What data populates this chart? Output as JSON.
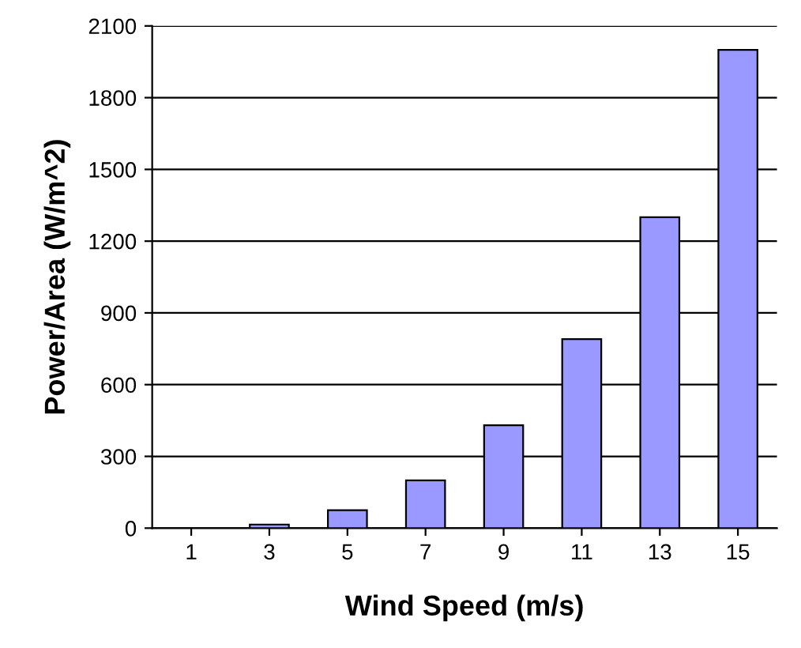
{
  "chart_data": {
    "type": "bar",
    "xlabel": "Wind Speed (m/s)",
    "ylabel": "Power/Area (W/m^2)",
    "categories": [
      "1",
      "3",
      "5",
      "7",
      "9",
      "11",
      "13",
      "15"
    ],
    "values": [
      null,
      15,
      75,
      200,
      430,
      790,
      1300,
      2000
    ],
    "color": "#9999ff",
    "ylim": [
      0,
      2100
    ],
    "yticks": [
      0,
      300,
      600,
      900,
      1200,
      1500,
      1800,
      2100
    ],
    "grid": "y"
  }
}
